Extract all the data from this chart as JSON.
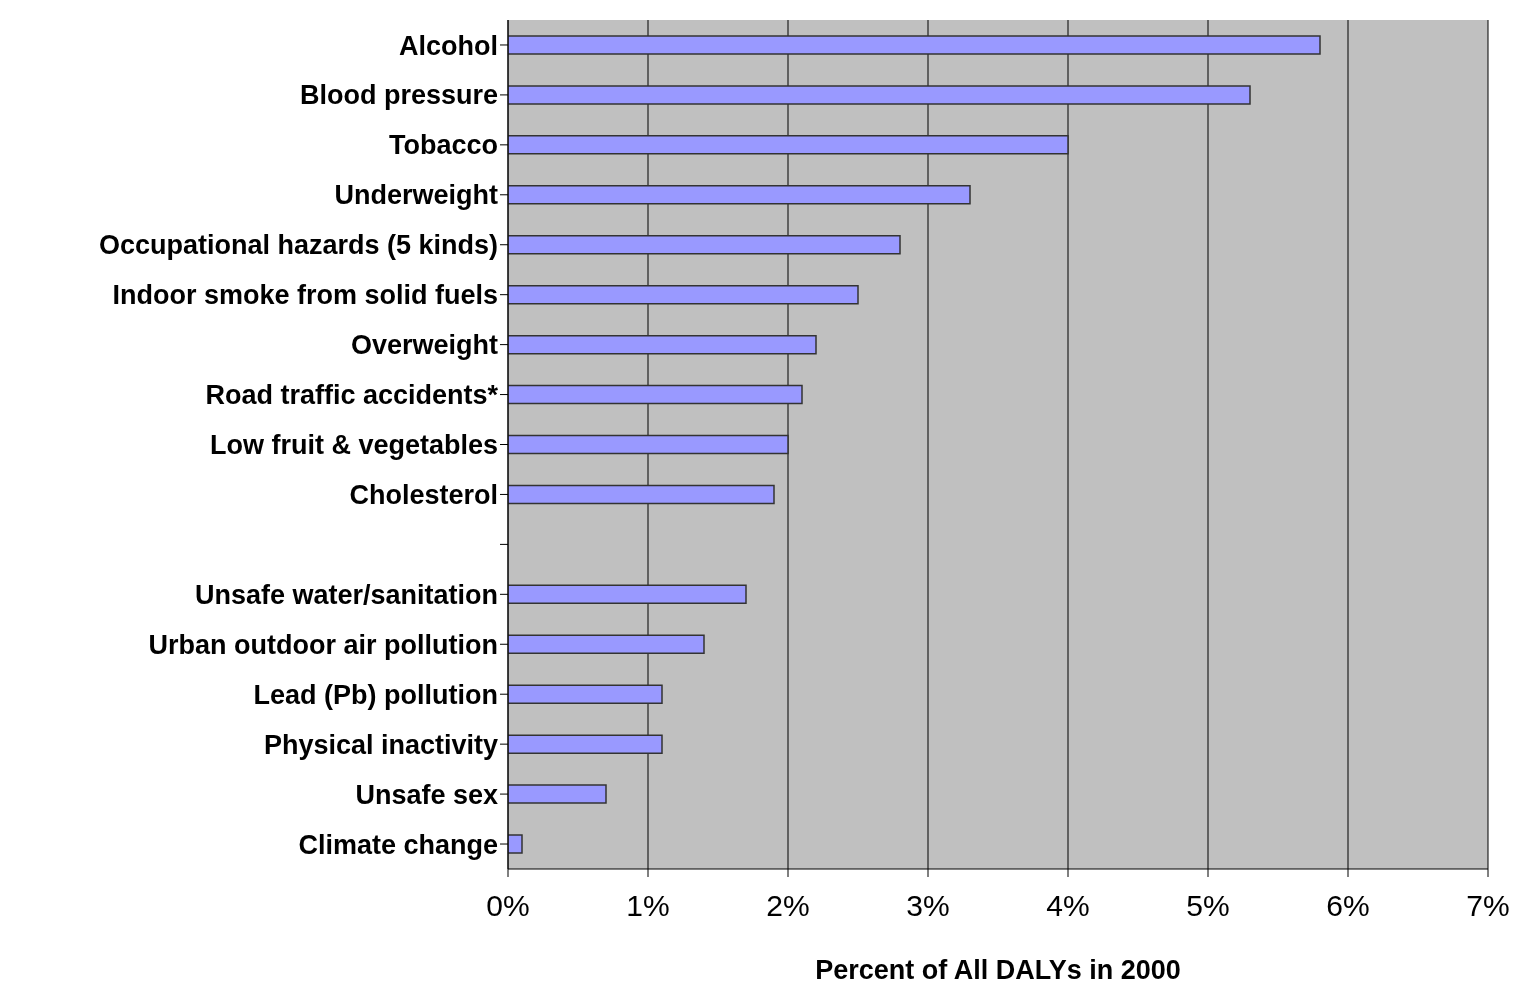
{
  "chart_data": {
    "type": "bar",
    "orientation": "horizontal",
    "xlabel": "Percent of All DALYs in 2000",
    "categories": [
      "Alcohol",
      "Blood pressure",
      "Tobacco",
      "Underweight",
      "Occupational hazards (5 kinds)",
      "Indoor smoke from solid fuels",
      "Overweight",
      "Road traffic accidents*",
      "Low fruit & vegetables",
      "Cholesterol",
      null,
      "Unsafe water/sanitation",
      "Urban outdoor air pollution",
      "Lead (Pb) pollution",
      "Physical inactivity",
      "Unsafe sex",
      "Climate change"
    ],
    "values": [
      5.8,
      5.3,
      4.0,
      3.3,
      2.8,
      2.5,
      2.2,
      2.1,
      2.0,
      1.9,
      null,
      1.7,
      1.4,
      1.1,
      1.1,
      0.7,
      0.1
    ],
    "color": "#9999ff",
    "xlim": [
      0,
      7
    ],
    "xticks": [
      {
        "value": 0,
        "label": "0%"
      },
      {
        "value": 1,
        "label": "1%"
      },
      {
        "value": 2,
        "label": "2%"
      },
      {
        "value": 3,
        "label": "3%"
      },
      {
        "value": 4,
        "label": "4%"
      },
      {
        "value": 5,
        "label": "5%"
      },
      {
        "value": 6,
        "label": "6%"
      },
      {
        "value": 7,
        "label": "7%"
      }
    ],
    "grid": "x",
    "legend": false
  }
}
